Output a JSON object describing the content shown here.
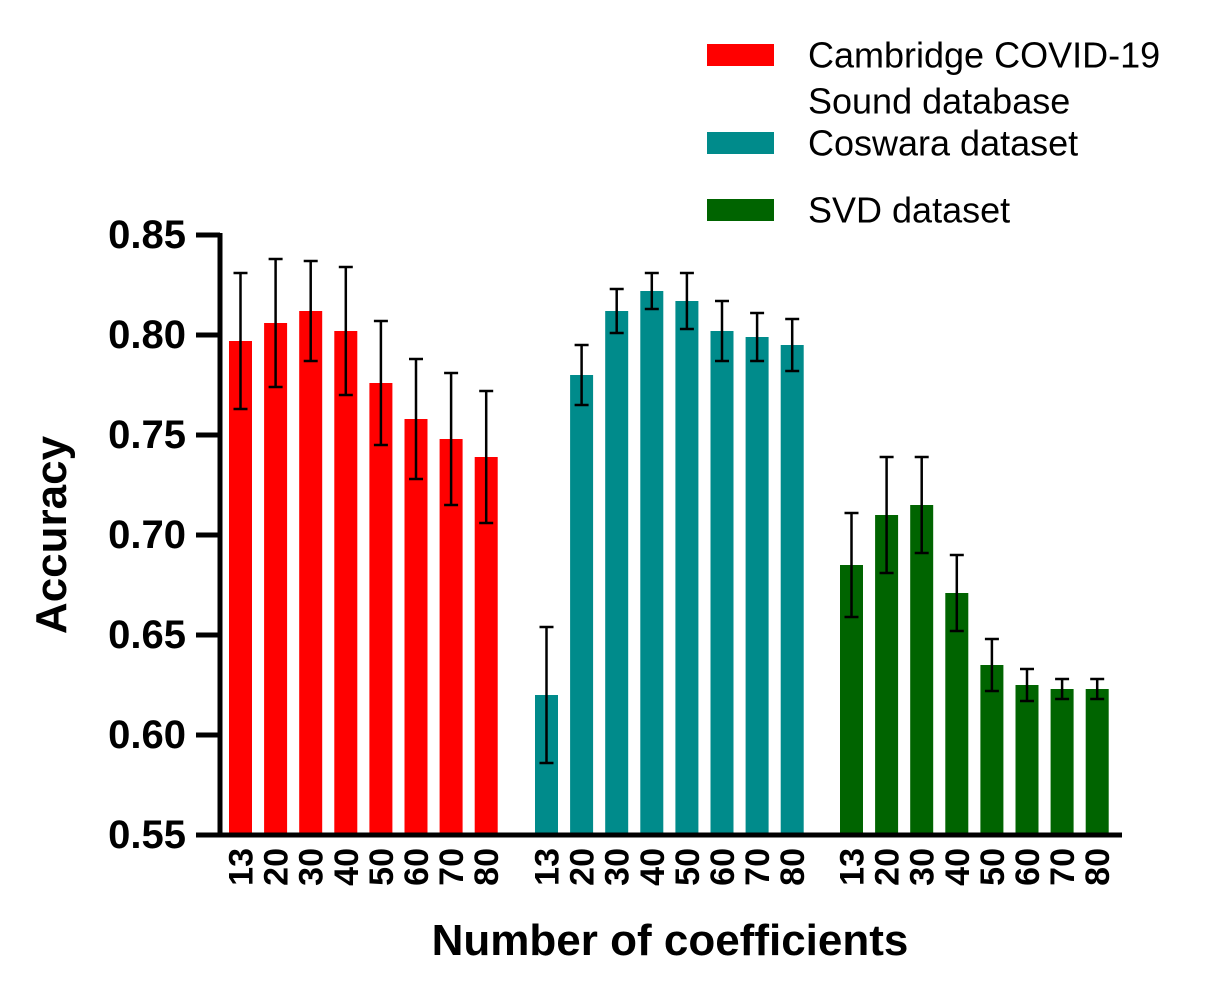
{
  "chart_data": {
    "type": "bar",
    "xlabel": "Number of coefficients",
    "ylabel": "Accuracy",
    "ylim": [
      0.55,
      0.85
    ],
    "yticks": [
      "0.85",
      "0.80",
      "0.75",
      "0.70",
      "0.65",
      "0.60",
      "0.55"
    ],
    "legend_position": "top-right",
    "grid": false,
    "error_bars": true,
    "categories": [
      "13",
      "20",
      "30",
      "40",
      "50",
      "60",
      "70",
      "80"
    ],
    "series": [
      {
        "name": "Cambridge COVID-19 Sound database",
        "legend_lines": [
          "Cambridge COVID-19",
          "Sound database"
        ],
        "color": "#ff0000",
        "values": [
          0.797,
          0.806,
          0.812,
          0.802,
          0.776,
          0.758,
          0.748,
          0.739
        ],
        "errors": [
          0.034,
          0.032,
          0.025,
          0.032,
          0.031,
          0.03,
          0.033,
          0.033
        ]
      },
      {
        "name": "Coswara dataset",
        "legend_lines": [
          "Coswara dataset"
        ],
        "color": "#008b8b",
        "values": [
          0.62,
          0.78,
          0.812,
          0.822,
          0.817,
          0.802,
          0.799,
          0.795
        ],
        "errors": [
          0.034,
          0.015,
          0.011,
          0.009,
          0.014,
          0.015,
          0.012,
          0.013
        ]
      },
      {
        "name": "SVD dataset",
        "legend_lines": [
          "SVD dataset"
        ],
        "color": "#006400",
        "values": [
          0.685,
          0.71,
          0.715,
          0.671,
          0.635,
          0.625,
          0.623,
          0.623
        ],
        "errors": [
          0.026,
          0.029,
          0.024,
          0.019,
          0.013,
          0.008,
          0.005,
          0.005
        ]
      }
    ]
  }
}
